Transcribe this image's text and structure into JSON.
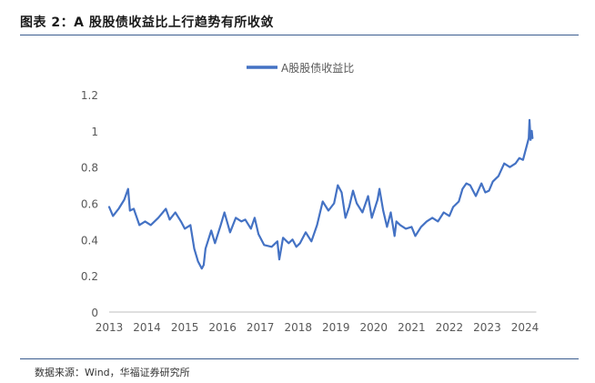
{
  "figure": {
    "title": "图表 2：A 股股债收益比上行趋势有所收敛",
    "source": "数据来源：Wind，华福证券研究所"
  },
  "colors": {
    "series": "#4472C4",
    "axis": "#bfbfbf",
    "rule": "#3b5d8f"
  },
  "chart_data": {
    "type": "line",
    "title": "",
    "xlabel": "",
    "ylabel": "",
    "ylim": [
      0,
      1.2
    ],
    "xlim": [
      2013,
      2024.3
    ],
    "yticks": [
      0,
      0.2,
      0.4,
      0.6,
      0.8,
      1,
      1.2
    ],
    "ytick_labels": [
      "0",
      "0.2",
      "0.4",
      "0.6",
      "0.8",
      "1",
      "1.2"
    ],
    "xticks": [
      2013,
      2014,
      2015,
      2016,
      2017,
      2018,
      2019,
      2020,
      2021,
      2022,
      2023,
      2024
    ],
    "xtick_labels": [
      "2013",
      "2014",
      "2015",
      "2016",
      "2017",
      "2018",
      "2019",
      "2020",
      "2021",
      "2022",
      "2023",
      "2024"
    ],
    "grid": false,
    "legend": "top-center",
    "series": [
      {
        "name": "A股股债收益比",
        "x": [
          2013.0,
          2013.1,
          2013.25,
          2013.4,
          2013.5,
          2013.55,
          2013.65,
          2013.8,
          2013.95,
          2014.1,
          2014.3,
          2014.5,
          2014.6,
          2014.75,
          2014.9,
          2015.0,
          2015.15,
          2015.25,
          2015.35,
          2015.45,
          2015.5,
          2015.55,
          2015.7,
          2015.8,
          2015.95,
          2016.05,
          2016.2,
          2016.35,
          2016.5,
          2016.6,
          2016.75,
          2016.85,
          2016.95,
          2017.1,
          2017.3,
          2017.45,
          2017.5,
          2017.6,
          2017.75,
          2017.85,
          2017.95,
          2018.05,
          2018.2,
          2018.35,
          2018.5,
          2018.65,
          2018.8,
          2018.95,
          2019.05,
          2019.15,
          2019.25,
          2019.35,
          2019.45,
          2019.55,
          2019.7,
          2019.85,
          2019.95,
          2020.1,
          2020.15,
          2020.25,
          2020.35,
          2020.45,
          2020.55,
          2020.6,
          2020.7,
          2020.85,
          2021.0,
          2021.1,
          2021.25,
          2021.4,
          2021.55,
          2021.7,
          2021.85,
          2022.0,
          2022.1,
          2022.25,
          2022.35,
          2022.45,
          2022.55,
          2022.7,
          2022.85,
          2022.95,
          2023.05,
          2023.15,
          2023.3,
          2023.45,
          2023.6,
          2023.75,
          2023.85,
          2023.95,
          2024.0,
          2024.05,
          2024.1,
          2024.12,
          2024.15,
          2024.18,
          2024.2
        ],
        "y": [
          0.58,
          0.53,
          0.57,
          0.62,
          0.68,
          0.56,
          0.57,
          0.48,
          0.5,
          0.48,
          0.52,
          0.57,
          0.51,
          0.55,
          0.5,
          0.46,
          0.48,
          0.35,
          0.28,
          0.24,
          0.26,
          0.35,
          0.45,
          0.38,
          0.48,
          0.55,
          0.44,
          0.52,
          0.5,
          0.51,
          0.46,
          0.52,
          0.43,
          0.37,
          0.36,
          0.39,
          0.29,
          0.41,
          0.38,
          0.4,
          0.36,
          0.38,
          0.44,
          0.39,
          0.48,
          0.61,
          0.56,
          0.6,
          0.7,
          0.66,
          0.52,
          0.58,
          0.67,
          0.6,
          0.55,
          0.64,
          0.52,
          0.62,
          0.68,
          0.56,
          0.47,
          0.55,
          0.42,
          0.5,
          0.48,
          0.46,
          0.47,
          0.42,
          0.47,
          0.5,
          0.52,
          0.5,
          0.55,
          0.53,
          0.58,
          0.61,
          0.68,
          0.71,
          0.7,
          0.64,
          0.71,
          0.66,
          0.67,
          0.72,
          0.75,
          0.82,
          0.8,
          0.82,
          0.85,
          0.84,
          0.88,
          0.92,
          0.96,
          1.06,
          0.95,
          1.0,
          0.96
        ]
      }
    ]
  }
}
